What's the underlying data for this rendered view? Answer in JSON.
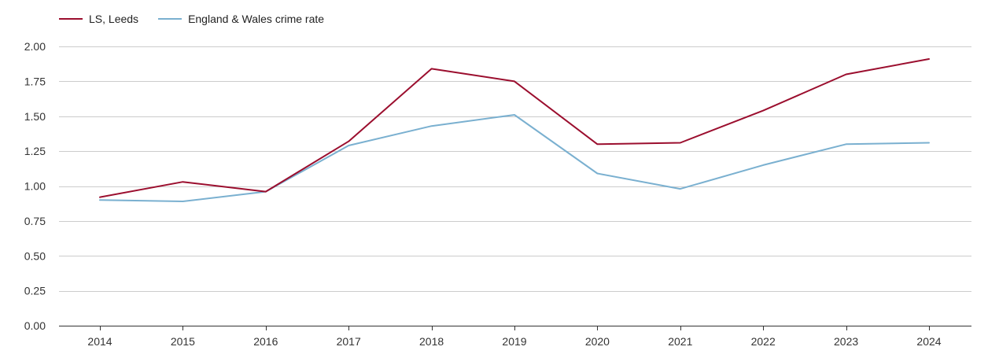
{
  "chart_data": {
    "type": "line",
    "title": "",
    "xlabel": "",
    "ylabel": "",
    "categories": [
      "2014",
      "2015",
      "2016",
      "2017",
      "2018",
      "2019",
      "2020",
      "2021",
      "2022",
      "2023",
      "2024"
    ],
    "ylim": [
      0,
      2
    ],
    "yticks": [
      "0.00",
      "0.25",
      "0.50",
      "0.75",
      "1.00",
      "1.25",
      "1.50",
      "1.75",
      "2.00"
    ],
    "grid": true,
    "legend_position": "top-left",
    "series": [
      {
        "name": "LS, Leeds",
        "color": "#9b0e2e",
        "values": [
          0.92,
          1.03,
          0.96,
          1.32,
          1.84,
          1.75,
          1.3,
          1.31,
          1.54,
          1.8,
          1.91
        ]
      },
      {
        "name": "England & Wales crime rate",
        "color": "#7ab0d0",
        "values": [
          0.9,
          0.89,
          0.96,
          1.29,
          1.43,
          1.51,
          1.09,
          0.98,
          1.15,
          1.3,
          1.31
        ]
      }
    ]
  }
}
